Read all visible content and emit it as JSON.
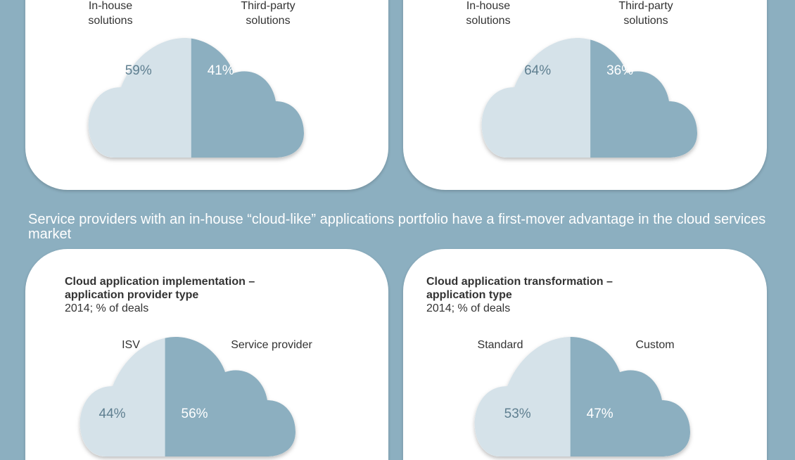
{
  "colors": {
    "background": "#8cafc0",
    "light": "#d5e2e9",
    "dark": "#8cafc0",
    "text": "#333333",
    "pct_light": "#5f7f90",
    "pct_dark": "#ffffff"
  },
  "banner": "Service providers with an in-house “cloud-like” applications portfolio have a first-mover advantage in the cloud services market",
  "chart_data": [
    {
      "type": "pie",
      "title": "",
      "subtitle": "",
      "categories": [
        "In-house solutions",
        "Third-party solutions"
      ],
      "labels": [
        [
          "In-house",
          "solutions"
        ],
        [
          "Third-party",
          "solutions"
        ]
      ],
      "values": [
        59,
        41
      ],
      "value_labels": [
        "59%",
        "41%"
      ]
    },
    {
      "type": "pie",
      "title": "",
      "subtitle": "",
      "categories": [
        "In-house solutions",
        "Third-party solutions"
      ],
      "labels": [
        [
          "In-house",
          "solutions"
        ],
        [
          "Third-party",
          "solutions"
        ]
      ],
      "values": [
        64,
        36
      ],
      "value_labels": [
        "64%",
        "36%"
      ]
    },
    {
      "type": "pie",
      "title": "Cloud application implementation – application provider type",
      "title_lines": [
        "Cloud application implementation –",
        "application provider type"
      ],
      "subtitle": "2014; % of deals",
      "categories": [
        "ISV",
        "Service provider"
      ],
      "labels": [
        [
          "ISV"
        ],
        [
          "Service provider"
        ]
      ],
      "values": [
        44,
        56
      ],
      "value_labels": [
        "44%",
        "56%"
      ]
    },
    {
      "type": "pie",
      "title": "Cloud application transformation – application type",
      "title_lines": [
        "Cloud application transformation –",
        "application type"
      ],
      "subtitle": "2014; % of deals",
      "categories": [
        "Standard",
        "Custom"
      ],
      "labels": [
        [
          "Standard"
        ],
        [
          "Custom"
        ]
      ],
      "values": [
        53,
        47
      ],
      "value_labels": [
        "53%",
        "47%"
      ]
    }
  ]
}
